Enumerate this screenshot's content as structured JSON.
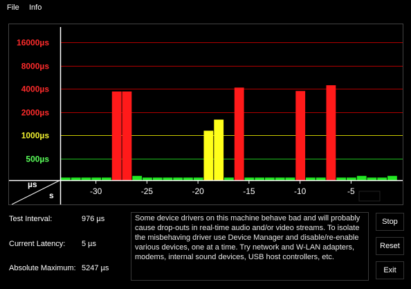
{
  "menu": {
    "file": "File",
    "info": "Info"
  },
  "stats": {
    "test_interval_label": "Test Interval:",
    "test_interval_value": "976 µs",
    "current_latency_label": "Current Latency:",
    "current_latency_value": "5 µs",
    "absolute_maximum_label": "Absolute Maximum:",
    "absolute_maximum_value": "5247 µs"
  },
  "message": "Some device drivers on this machine behave bad and will probably cause drop-outs in real-time audio and/or video streams. To isolate the misbehaving driver use Device Manager and disable/re-enable various devices, one at a time. Try network and W-LAN adapters, modems, internal sound devices, USB host controllers, etc.",
  "buttons": {
    "stop": "Stop",
    "reset": "Reset",
    "exit": "Exit"
  },
  "chart_data": {
    "type": "bar",
    "y_scale": "log2",
    "corner_labels": {
      "y_unit": "µs",
      "x_unit": "s"
    },
    "y_ticks": [
      {
        "label": "16000µs",
        "value": 16000,
        "color": "#ff2b2b",
        "line": "#b00000"
      },
      {
        "label": "8000µs",
        "value": 8000,
        "color": "#ff2b2b",
        "line": "#b00000"
      },
      {
        "label": "4000µs",
        "value": 4000,
        "color": "#ff2b2b",
        "line": "#b00000"
      },
      {
        "label": "2000µs",
        "value": 2000,
        "color": "#ff2b2b",
        "line": "#b00000"
      },
      {
        "label": "1000µs",
        "value": 1000,
        "color": "#f2f230",
        "line": "#c8c800"
      },
      {
        "label": "500µs",
        "value": 500,
        "color": "#5aff5a",
        "line": "#1fbf1f"
      }
    ],
    "x_ticks": [
      {
        "label": "-30",
        "value": -30
      },
      {
        "label": "-25",
        "value": -25
      },
      {
        "label": "-20",
        "value": -20
      },
      {
        "label": "-15",
        "value": -15
      },
      {
        "label": "-10",
        "value": -10
      },
      {
        "label": "-5",
        "value": -5
      }
    ],
    "xlim": [
      -33,
      0
    ],
    "ylim": [
      250,
      23000
    ],
    "bar_width_s": 1,
    "colors": {
      "red": "#ff1a1a",
      "yellow": "#ffff1a",
      "green": "#22e622"
    },
    "bars": [
      {
        "x": -33,
        "value": 285,
        "color": "green"
      },
      {
        "x": -32,
        "value": 285,
        "color": "green"
      },
      {
        "x": -31,
        "value": 285,
        "color": "green"
      },
      {
        "x": -30,
        "value": 285,
        "color": "green"
      },
      {
        "x": -29,
        "value": 285,
        "color": "green"
      },
      {
        "x": -28,
        "value": 3700,
        "color": "red"
      },
      {
        "x": -27,
        "value": 3700,
        "color": "red"
      },
      {
        "x": -26,
        "value": 300,
        "color": "green"
      },
      {
        "x": -25,
        "value": 285,
        "color": "green"
      },
      {
        "x": -24,
        "value": 285,
        "color": "green"
      },
      {
        "x": -23,
        "value": 285,
        "color": "green"
      },
      {
        "x": -22,
        "value": 285,
        "color": "green"
      },
      {
        "x": -21,
        "value": 285,
        "color": "green"
      },
      {
        "x": -20,
        "value": 285,
        "color": "green"
      },
      {
        "x": -19,
        "value": 1150,
        "color": "yellow"
      },
      {
        "x": -18,
        "value": 1600,
        "color": "yellow"
      },
      {
        "x": -17,
        "value": 285,
        "color": "green"
      },
      {
        "x": -16,
        "value": 4150,
        "color": "red"
      },
      {
        "x": -15,
        "value": 285,
        "color": "green"
      },
      {
        "x": -14,
        "value": 285,
        "color": "green"
      },
      {
        "x": -13,
        "value": 285,
        "color": "green"
      },
      {
        "x": -12,
        "value": 285,
        "color": "green"
      },
      {
        "x": -11,
        "value": 285,
        "color": "green"
      },
      {
        "x": -10,
        "value": 3750,
        "color": "red"
      },
      {
        "x": -9,
        "value": 285,
        "color": "green"
      },
      {
        "x": -8,
        "value": 285,
        "color": "green"
      },
      {
        "x": -7,
        "value": 4450,
        "color": "red"
      },
      {
        "x": -6,
        "value": 285,
        "color": "green"
      },
      {
        "x": -5,
        "value": 285,
        "color": "green"
      },
      {
        "x": -4,
        "value": 300,
        "color": "green"
      },
      {
        "x": -3,
        "value": 285,
        "color": "green"
      },
      {
        "x": -2,
        "value": 285,
        "color": "green"
      },
      {
        "x": -1,
        "value": 300,
        "color": "green"
      }
    ]
  }
}
